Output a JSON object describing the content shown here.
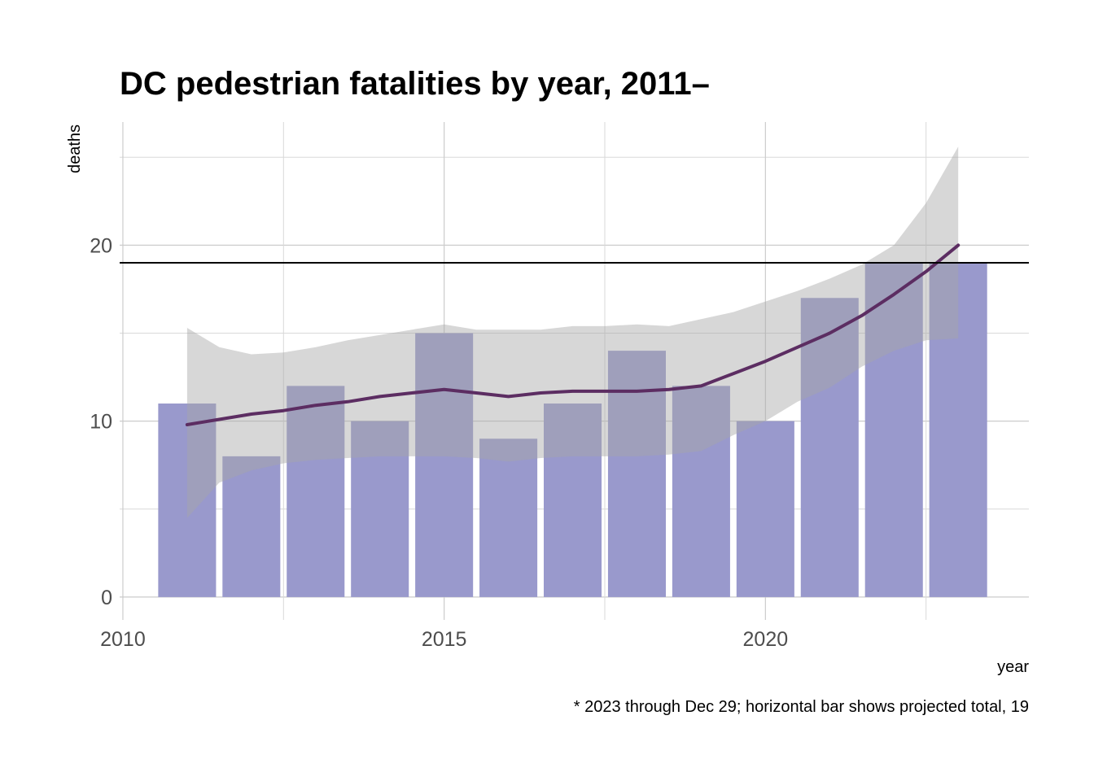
{
  "chart_data": {
    "type": "bar",
    "title": "DC pedestrian fatalities by year, 2011–",
    "xlabel": "year",
    "ylabel": "deaths",
    "caption": "* 2023 through Dec 29; horizontal bar shows projected total, 19",
    "xlim": [
      2009.95,
      2024.1
    ],
    "ylim": [
      -1.3,
      27
    ],
    "x_ticks": [
      2010,
      2015,
      2020
    ],
    "y_ticks": [
      0,
      10,
      20
    ],
    "x_minor": [
      2012.5,
      2017.5,
      2022.5
    ],
    "y_minor": [
      5,
      15,
      25
    ],
    "grid": true,
    "bar_color": "#9999cc",
    "bar_width_years": 0.9,
    "years": [
      2011,
      2012,
      2013,
      2014,
      2015,
      2016,
      2017,
      2018,
      2019,
      2020,
      2021,
      2022,
      2023
    ],
    "deaths": [
      11,
      8,
      12,
      10,
      15,
      9,
      11,
      14,
      12,
      10,
      17,
      19,
      19
    ],
    "projected_total": 19,
    "reference_line_color": "#000000",
    "smooth": {
      "color": "#5c2d62",
      "band_color": "#a6a6a6",
      "x": [
        2011,
        2011.5,
        2012,
        2012.5,
        2013,
        2013.5,
        2014,
        2014.5,
        2015,
        2015.5,
        2016,
        2016.5,
        2017,
        2017.5,
        2018,
        2018.5,
        2019,
        2019.5,
        2020,
        2020.5,
        2021,
        2021.5,
        2022,
        2022.5,
        2023
      ],
      "fit": [
        9.8,
        10.1,
        10.4,
        10.6,
        10.9,
        11.1,
        11.4,
        11.6,
        11.8,
        11.6,
        11.4,
        11.6,
        11.7,
        11.7,
        11.7,
        11.8,
        12.0,
        12.7,
        13.4,
        14.2,
        15.0,
        16.0,
        17.2,
        18.5,
        20.0
      ],
      "upper": [
        15.3,
        14.2,
        13.8,
        13.9,
        14.2,
        14.6,
        14.9,
        15.2,
        15.5,
        15.2,
        15.2,
        15.2,
        15.4,
        15.4,
        15.5,
        15.4,
        15.8,
        16.2,
        16.8,
        17.4,
        18.1,
        18.9,
        20.0,
        22.4,
        25.6
      ],
      "lower": [
        4.5,
        6.5,
        7.2,
        7.6,
        7.8,
        7.9,
        8.0,
        8.0,
        8.0,
        7.9,
        7.7,
        7.9,
        8.0,
        8.0,
        8.0,
        8.1,
        8.3,
        9.2,
        10.0,
        11.1,
        11.9,
        13.1,
        14.0,
        14.6,
        14.7
      ]
    }
  }
}
